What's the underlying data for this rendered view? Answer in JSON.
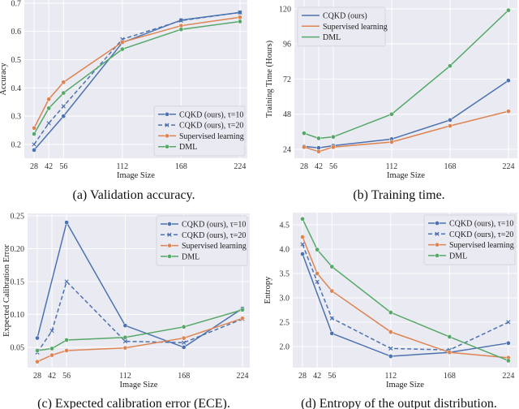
{
  "colors": {
    "blue": "#4c72b0",
    "orange": "#dd8452",
    "green": "#55a868",
    "background": "#eaeaf2",
    "grid": "#ffffff"
  },
  "chart_data": [
    {
      "id": "a",
      "type": "line",
      "caption": "(a) Validation accuracy.",
      "xlabel": "Image Size",
      "ylabel": "Accuracy",
      "x": [
        28,
        42,
        56,
        112,
        168,
        224
      ],
      "xlim": [
        18.7,
        231
      ],
      "ylim": [
        0.151,
        0.711
      ],
      "yticks": [
        0.2,
        0.3,
        0.4,
        0.5,
        0.6,
        0.7
      ],
      "ytick_labels": [
        "0.2",
        "0.3",
        "0.4",
        "0.5",
        "0.6",
        "0.7"
      ],
      "grid": true,
      "legend": "lower-right",
      "series": [
        {
          "name": "CQKD (ours), τ=10",
          "color": "#4c72b0",
          "style": "solid",
          "marker": "circle",
          "values": [
            0.18,
            null,
            0.3,
            0.56,
            0.64,
            0.667
          ]
        },
        {
          "name": "CQKD (ours), τ=20",
          "color": "#4c72b0",
          "style": "dashed",
          "marker": "x",
          "values": [
            0.2,
            0.275,
            0.335,
            0.572,
            0.638,
            0.667
          ]
        },
        {
          "name": "Supervised learning",
          "color": "#dd8452",
          "style": "solid",
          "marker": "circle",
          "values": [
            0.258,
            0.36,
            0.42,
            0.562,
            0.62,
            0.65
          ]
        },
        {
          "name": "DML",
          "color": "#55a868",
          "style": "solid",
          "marker": "circle",
          "values": [
            0.237,
            0.328,
            0.382,
            0.537,
            0.607,
            0.635
          ]
        }
      ]
    },
    {
      "id": "b",
      "type": "line",
      "caption": "(b) Training time.",
      "xlabel": "Image Size",
      "ylabel": "Training Time (Hours)",
      "x": [
        28,
        42,
        56,
        112,
        168,
        224
      ],
      "xlim": [
        18.7,
        232.6
      ],
      "ylim": [
        17.9,
        126
      ],
      "yticks": [
        24,
        48,
        72,
        96,
        120
      ],
      "ytick_labels": [
        "24",
        "48",
        "72",
        "96",
        "120"
      ],
      "grid": true,
      "legend": "upper-left",
      "series": [
        {
          "name": "CQKD (ours)",
          "color": "#4c72b0",
          "style": "solid",
          "marker": "circle",
          "values": [
            26,
            25,
            26.5,
            31,
            44,
            71
          ]
        },
        {
          "name": "Supervised learning",
          "color": "#dd8452",
          "style": "solid",
          "marker": "circle",
          "values": [
            25.5,
            22.5,
            25.5,
            29,
            40,
            50
          ]
        },
        {
          "name": "DML",
          "color": "#55a868",
          "style": "solid",
          "marker": "circle",
          "values": [
            35,
            31.5,
            32.5,
            48,
            81,
            119
          ]
        }
      ]
    },
    {
      "id": "c",
      "type": "line",
      "caption": "(c) Expected calibration error (ECE).",
      "xlabel": "Image Size",
      "ylabel": "Expected Calibration Error",
      "x": [
        28,
        42,
        56,
        112,
        168,
        224
      ],
      "xlim": [
        18.7,
        231
      ],
      "ylim": [
        0.019,
        0.2537
      ],
      "yticks": [
        0.05,
        0.1,
        0.15,
        0.2,
        0.25
      ],
      "ytick_labels": [
        "0.05",
        "0.10",
        "0.15",
        "0.20",
        "0.25"
      ],
      "grid": true,
      "legend": "upper-right",
      "series": [
        {
          "name": "CQKD (ours), τ=10",
          "color": "#4c72b0",
          "style": "solid",
          "marker": "circle",
          "values": [
            0.064,
            null,
            0.24,
            0.083,
            0.05,
            0.109
          ]
        },
        {
          "name": "CQKD (ours), τ=20",
          "color": "#4c72b0",
          "style": "dashed",
          "marker": "x",
          "values": [
            0.042,
            0.075,
            0.15,
            0.059,
            0.057,
            0.093
          ]
        },
        {
          "name": "Supervised learning",
          "color": "#dd8452",
          "style": "solid",
          "marker": "circle",
          "values": [
            0.028,
            0.038,
            0.045,
            0.049,
            0.064,
            0.094
          ]
        },
        {
          "name": "DML",
          "color": "#55a868",
          "style": "solid",
          "marker": "circle",
          "values": [
            0.045,
            0.048,
            0.061,
            0.065,
            0.081,
            0.107
          ]
        }
      ]
    },
    {
      "id": "d",
      "type": "line",
      "caption": "(d) Entropy of the output distribution.",
      "xlabel": "Image Size",
      "ylabel": "Entropy",
      "x": [
        28,
        42,
        56,
        112,
        168,
        224
      ],
      "xlim": [
        18.7,
        232.6
      ],
      "ylim": [
        1.567,
        4.75
      ],
      "yticks": [
        2.0,
        2.5,
        3.0,
        3.5,
        4.0,
        4.5
      ],
      "ytick_labels": [
        "2.0",
        "2.5",
        "3.0",
        "3.5",
        "4.0",
        "4.5"
      ],
      "grid": true,
      "legend": "upper-right",
      "series": [
        {
          "name": "CQKD (ours), τ=10",
          "color": "#4c72b0",
          "style": "solid",
          "marker": "circle",
          "values": [
            3.9,
            null,
            2.27,
            1.8,
            1.88,
            2.07
          ]
        },
        {
          "name": "CQKD (ours), τ=20",
          "color": "#4c72b0",
          "style": "dashed",
          "marker": "x",
          "values": [
            4.1,
            3.33,
            2.58,
            1.96,
            1.93,
            2.5
          ]
        },
        {
          "name": "Supervised learning",
          "color": "#dd8452",
          "style": "solid",
          "marker": "circle",
          "values": [
            4.25,
            3.5,
            3.14,
            2.3,
            1.88,
            1.77
          ]
        },
        {
          "name": "DML",
          "color": "#55a868",
          "style": "solid",
          "marker": "circle",
          "values": [
            4.62,
            3.99,
            3.64,
            2.7,
            2.2,
            1.71
          ]
        }
      ]
    }
  ]
}
